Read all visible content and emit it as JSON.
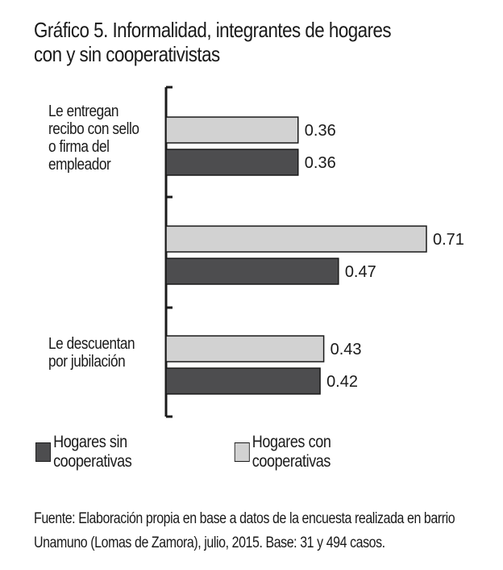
{
  "chart_data": {
    "type": "bar",
    "orientation": "horizontal",
    "title": "Gráfico 5. Informalidad, integrantes de hogares con y sin cooperativistas",
    "categories": [
      "Le entregan recibo con sello o firma del empleador",
      "",
      "Le descuentan por jubilación"
    ],
    "category_lines": [
      [
        "Le entregan",
        "recibo con sello",
        "o firma del",
        "empleador"
      ],
      [],
      [
        "Le descuentan",
        "por jubilación"
      ]
    ],
    "series": [
      {
        "name": "Hogares con cooperativas",
        "color": "#d2d2d2",
        "values": [
          0.36,
          0.71,
          0.43
        ],
        "labels": [
          "0.36",
          "0.71",
          "0.43"
        ]
      },
      {
        "name": "Hogares sin cooperativas",
        "color": "#4d4d4f",
        "values": [
          0.36,
          0.47,
          0.42
        ],
        "labels": [
          "0.36",
          "0.47",
          "0.42"
        ]
      }
    ],
    "xlim": [
      0,
      0.71
    ],
    "grid": false,
    "legend_position": "bottom"
  },
  "legend": {
    "items": [
      {
        "label": "Hogares sin cooperativas",
        "color": "#4d4d4f"
      },
      {
        "label": "Hogares con cooperativas",
        "color": "#d2d2d2"
      }
    ]
  },
  "source": "Fuente: Elaboración propia en base a datos de la encuesta realizada en barrio Unamuno (Lomas de Zamora), julio, 2015. Base: 31 y 494 casos."
}
